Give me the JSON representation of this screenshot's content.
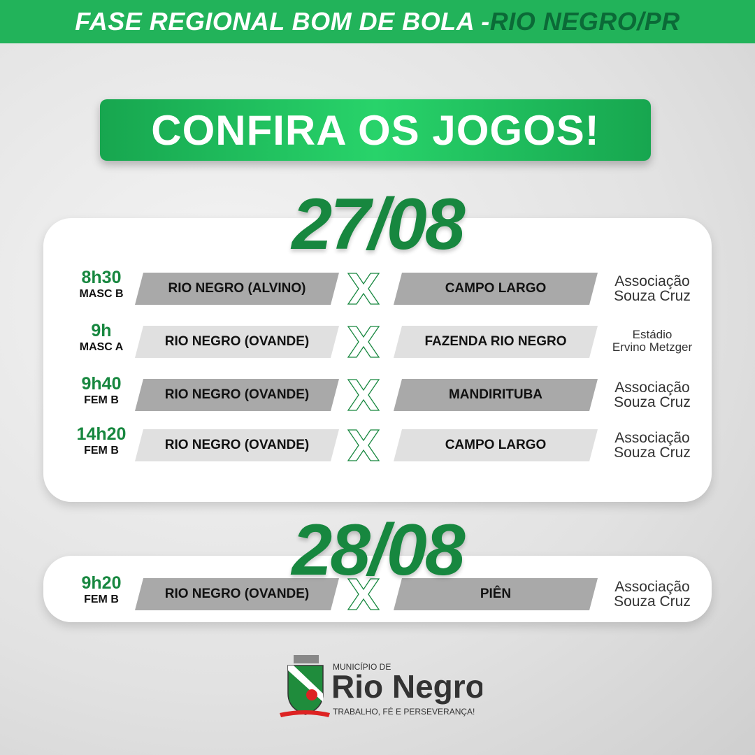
{
  "header": {
    "title": "FASE REGIONAL BOM DE BOLA - ",
    "highlight": "RIO NEGRO/PR"
  },
  "banner": "CONFIRA OS JOGOS!",
  "colors": {
    "green": "#22b35a",
    "dark_green": "#17873f"
  },
  "days": [
    {
      "date": "27/08",
      "games": [
        {
          "time": "8h30",
          "category": "MASC B",
          "home": "RIO NEGRO (ALVINO)",
          "away": "CAMPO LARGO",
          "venue": [
            "Associação",
            "Souza Cruz"
          ]
        },
        {
          "time": "9h",
          "category": "MASC A",
          "home": "RIO NEGRO (OVANDE)",
          "away": "FAZENDA RIO NEGRO",
          "venue": [
            "Estádio",
            "Ervino Metzger"
          ]
        },
        {
          "time": "9h40",
          "category": "FEM B",
          "home": "RIO NEGRO (OVANDE)",
          "away": "MANDIRITUBA",
          "venue": [
            "Associação",
            "Souza Cruz"
          ]
        },
        {
          "time": "14h20",
          "category": "FEM B",
          "home": "RIO NEGRO (OVANDE)",
          "away": "CAMPO LARGO",
          "venue": [
            "Associação",
            "Souza Cruz"
          ]
        }
      ]
    },
    {
      "date": "28/08",
      "games": [
        {
          "time": "9h20",
          "category": "FEM B",
          "home": "RIO NEGRO (OVANDE)",
          "away": "PIÊN",
          "venue": [
            "Associação",
            "Souza Cruz"
          ]
        }
      ]
    }
  ],
  "versus_icon": "x-outline-icon",
  "footer": {
    "pre": "MUNICÍPIO DE",
    "name": "Rio Negro",
    "motto": "TRABALHO, FÉ E PERSEVERANÇA!"
  }
}
